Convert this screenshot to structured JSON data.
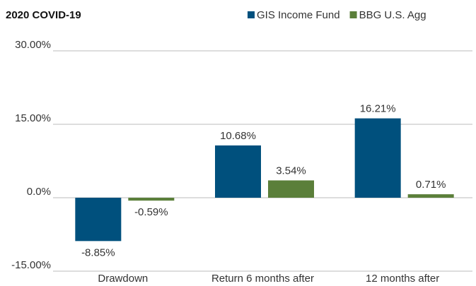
{
  "chart_data": {
    "type": "bar",
    "title": "2020 COVID-19",
    "categories": [
      "Drawdown",
      "Return 6 months after",
      "12 months after"
    ],
    "series": [
      {
        "name": "GIS Income Fund",
        "color": "#00507d",
        "values": [
          -8.85,
          10.68,
          16.21
        ],
        "value_labels": [
          "-8.85%",
          "10.68%",
          "16.21%"
        ]
      },
      {
        "name": "BBG U.S. Agg",
        "color": "#5b7f3a",
        "values": [
          -0.59,
          3.54,
          0.71
        ],
        "value_labels": [
          "-0.59%",
          "3.54%",
          "0.71%"
        ]
      }
    ],
    "ylim": [
      -15,
      30
    ],
    "yticks": [
      {
        "value": -15,
        "label": "-15.00%"
      },
      {
        "value": 0,
        "label": "0.0%"
      },
      {
        "value": 15,
        "label": "15.00%"
      },
      {
        "value": 30,
        "label": "30.00%"
      }
    ],
    "grid": true,
    "legend": "top-right"
  }
}
